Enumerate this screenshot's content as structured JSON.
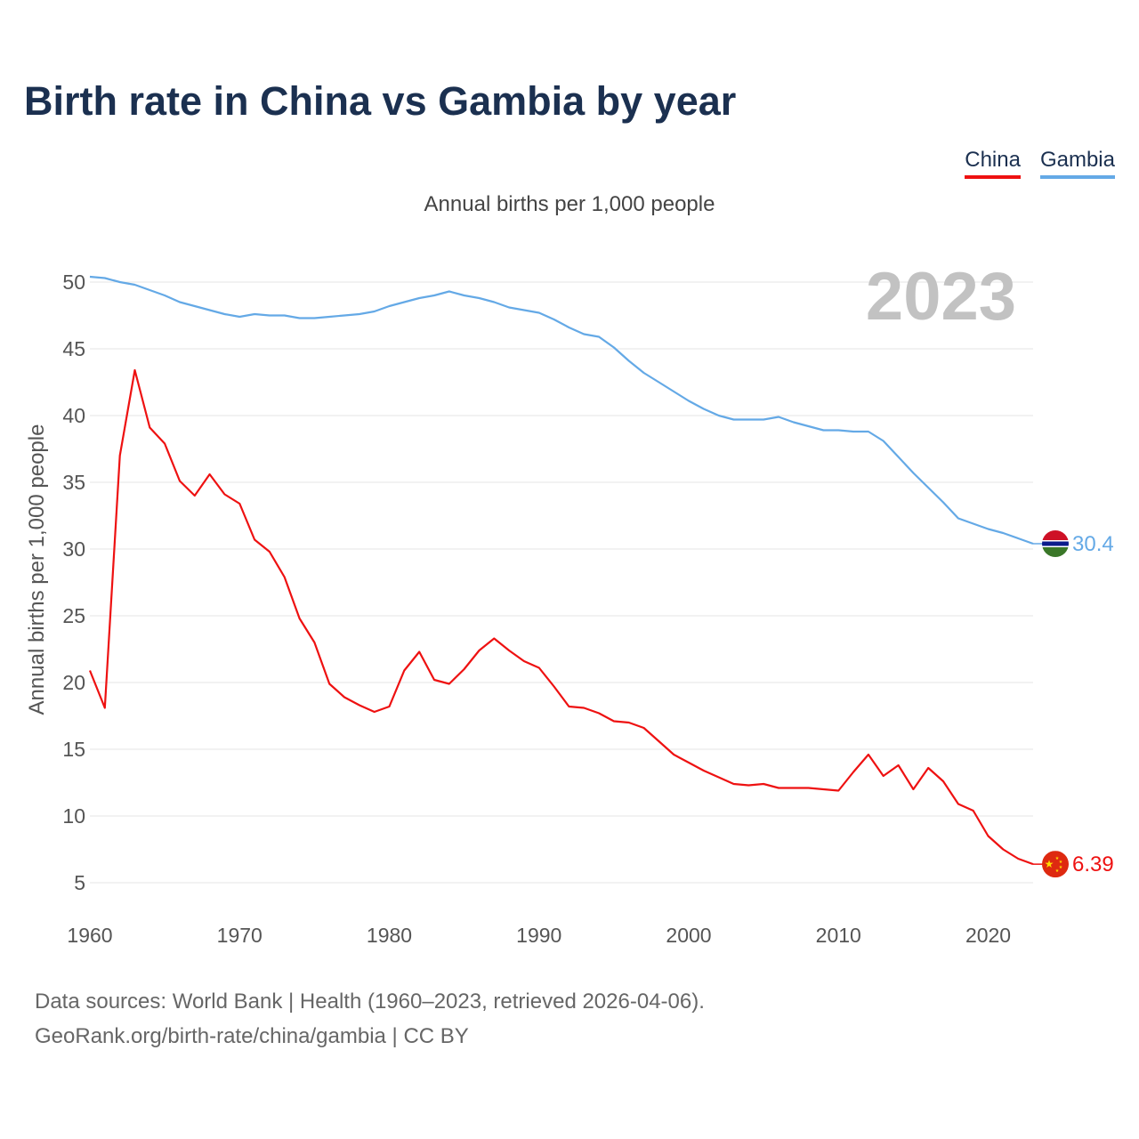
{
  "header": {
    "title": "Birth rate in China vs Gambia by year",
    "subtitle": "Annual births per 1,000 people",
    "year": "2023"
  },
  "legend": [
    {
      "label": "China",
      "color": "#ee1111"
    },
    {
      "label": "Gambia",
      "color": "#64a9e6"
    }
  ],
  "footer": {
    "line1": "Data sources: World Bank | Health (1960–2023, retrieved 2026-04-06).",
    "line2": "GeoRank.org/birth-rate/china/gambia | CC BY"
  },
  "chart_data": {
    "type": "line",
    "title": "Birth rate in China vs Gambia by year",
    "xlabel": "",
    "ylabel": "Annual births per 1,000 people",
    "xlim": [
      1960,
      2023
    ],
    "ylim": [
      5,
      50
    ],
    "x_ticks": [
      "1960",
      "1970",
      "1980",
      "1990",
      "2000",
      "2010",
      "2020"
    ],
    "y_ticks": [
      "5",
      "10",
      "15",
      "20",
      "25",
      "30",
      "35",
      "40",
      "45",
      "50"
    ],
    "x": [
      1960,
      1961,
      1962,
      1963,
      1964,
      1965,
      1966,
      1967,
      1968,
      1969,
      1970,
      1971,
      1972,
      1973,
      1974,
      1975,
      1976,
      1977,
      1978,
      1979,
      1980,
      1981,
      1982,
      1983,
      1984,
      1985,
      1986,
      1987,
      1988,
      1989,
      1990,
      1991,
      1992,
      1993,
      1994,
      1995,
      1996,
      1997,
      1998,
      1999,
      2000,
      2001,
      2002,
      2003,
      2004,
      2005,
      2006,
      2007,
      2008,
      2009,
      2010,
      2011,
      2012,
      2013,
      2014,
      2015,
      2016,
      2017,
      2018,
      2019,
      2020,
      2021,
      2022,
      2023
    ],
    "series": [
      {
        "name": "China",
        "color": "#ee1111",
        "end_label": "6.39",
        "values": [
          20.9,
          18.1,
          37.0,
          43.4,
          39.1,
          37.9,
          35.1,
          34.0,
          35.6,
          34.1,
          33.4,
          30.7,
          29.8,
          27.9,
          24.8,
          23.0,
          19.9,
          18.9,
          18.3,
          17.8,
          18.2,
          20.9,
          22.3,
          20.2,
          19.9,
          21.0,
          22.4,
          23.3,
          22.4,
          21.6,
          21.1,
          19.7,
          18.2,
          18.1,
          17.7,
          17.1,
          17.0,
          16.6,
          15.6,
          14.6,
          14.0,
          13.4,
          12.9,
          12.4,
          12.3,
          12.4,
          12.1,
          12.1,
          12.1,
          12.0,
          11.9,
          13.3,
          14.6,
          13.0,
          13.8,
          12.0,
          13.6,
          12.6,
          10.9,
          10.4,
          8.5,
          7.5,
          6.8,
          6.39
        ]
      },
      {
        "name": "Gambia",
        "color": "#64a9e6",
        "end_label": "30.4",
        "values": [
          50.4,
          50.3,
          50.0,
          49.8,
          49.4,
          49.0,
          48.5,
          48.2,
          47.9,
          47.6,
          47.4,
          47.6,
          47.5,
          47.5,
          47.3,
          47.3,
          47.4,
          47.5,
          47.6,
          47.8,
          48.2,
          48.5,
          48.8,
          49.0,
          49.3,
          49.0,
          48.8,
          48.5,
          48.1,
          47.9,
          47.7,
          47.2,
          46.6,
          46.1,
          45.9,
          45.1,
          44.1,
          43.2,
          42.5,
          41.8,
          41.1,
          40.5,
          40.0,
          39.7,
          39.7,
          39.7,
          39.9,
          39.5,
          39.2,
          38.9,
          38.9,
          38.8,
          38.8,
          38.1,
          36.9,
          35.7,
          34.6,
          33.5,
          32.3,
          31.9,
          31.5,
          31.2,
          30.8,
          30.4
        ]
      }
    ]
  }
}
